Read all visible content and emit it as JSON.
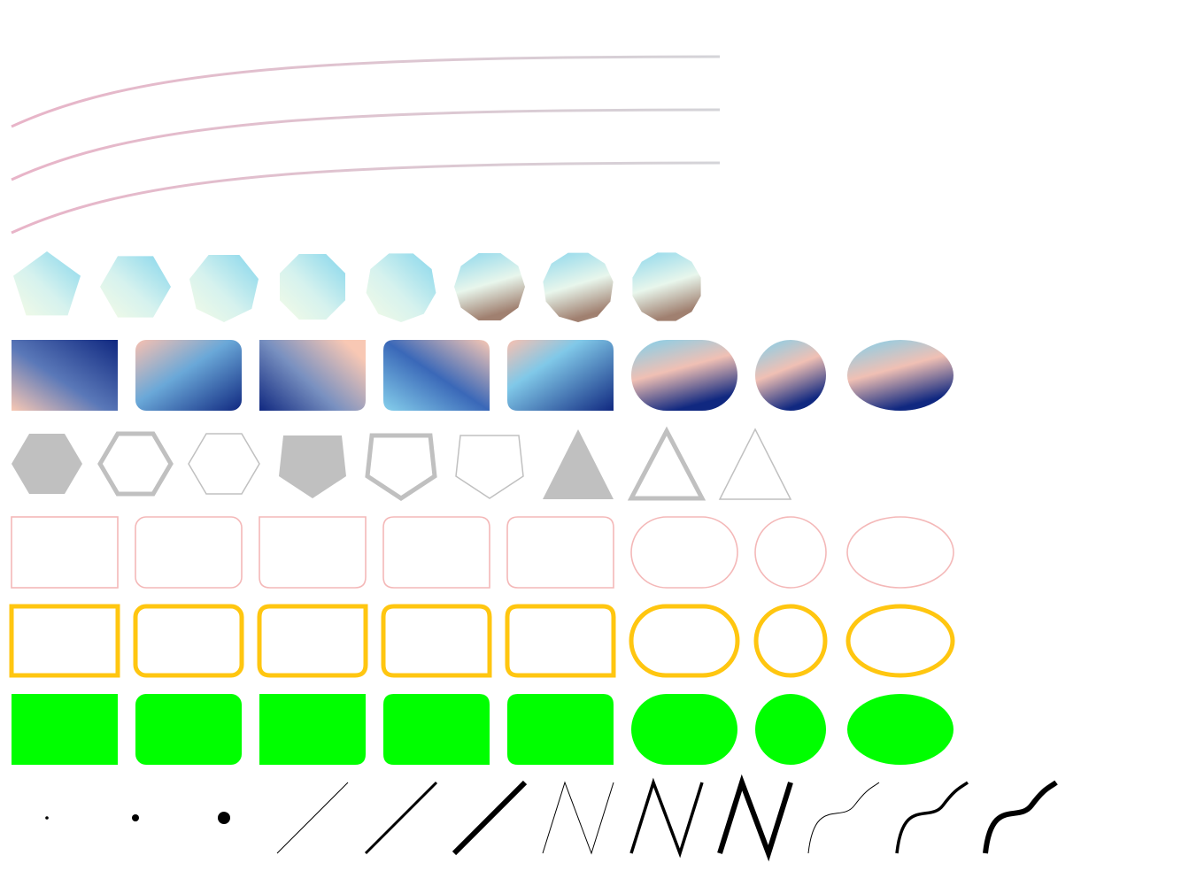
{
  "palette": {
    "curve_start": "#e8b4c8",
    "curve_end": "#d4d4d8",
    "poly_grad": [
      "#eafbe0",
      "#bdeaf0",
      "#8fd8ec"
    ],
    "poly_shade": "#a08070",
    "shape_grad": [
      "#f8c8b4",
      "#80d0ec",
      "#102880"
    ],
    "gray_fill": "#c0c0c0",
    "pink_stroke": "#f4b8b8",
    "orange_stroke": "#ffc610",
    "green_fill": "#00ff00",
    "black": "#000000"
  },
  "rows": {
    "curves": 3,
    "gradient_polygons": [
      "pentagon",
      "hexagon",
      "heptagon",
      "octagon",
      "nonagon",
      "decagon",
      "hendecagon",
      "dodecagon"
    ],
    "gradient_shapes": [
      "rect",
      "rounded-rect",
      "cut-corner-rect",
      "cut-corner-rect-2",
      "tab-rect",
      "capsule",
      "circle",
      "ellipse"
    ],
    "outline_polygons": [
      "hexagon-filled",
      "hexagon-thick",
      "hexagon-thin",
      "pentagon-filled",
      "pentagon-thick",
      "pentagon-thin",
      "triangle-filled",
      "triangle-thick",
      "triangle-thin"
    ],
    "pink_shapes": [
      "rect",
      "rounded-rect",
      "cut-corner-rect",
      "cut-corner-rect-2",
      "tab-rect",
      "capsule",
      "circle",
      "ellipse"
    ],
    "orange_shapes": [
      "rect",
      "rounded-rect",
      "cut-corner-rect",
      "cut-corner-rect-2",
      "tab-rect",
      "capsule",
      "circle",
      "ellipse"
    ],
    "green_shapes": [
      "rect",
      "rounded-rect",
      "cut-corner-rect",
      "cut-corner-rect-2",
      "tab-rect",
      "capsule",
      "circle",
      "ellipse"
    ],
    "strokes": [
      "dot-small",
      "dot-medium",
      "dot-large",
      "line-thin",
      "line-medium",
      "line-thick",
      "zigzag-thin",
      "zigzag-medium",
      "zigzag-thick",
      "wave-thin",
      "wave-medium",
      "wave-thick"
    ]
  }
}
